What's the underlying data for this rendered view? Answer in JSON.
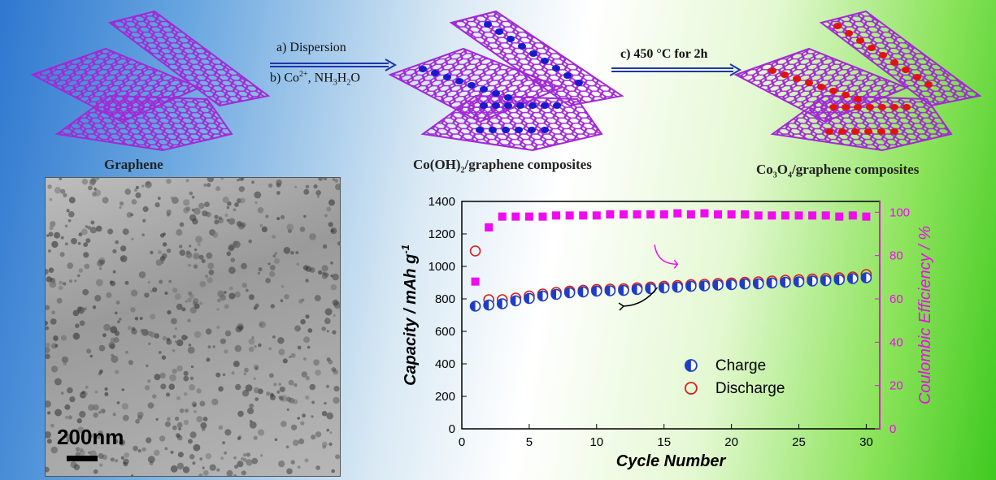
{
  "labels": {
    "graphene": "Graphene",
    "cooh_prefix": "Co(OH)",
    "cooh_sub": "2",
    "cooh_suffix": "/graphene composites",
    "co3o4_a": "Co",
    "co3o4_sub1": "3",
    "co3o4_b": "O",
    "co3o4_sub2": "4",
    "co3o4_suffix": "/graphene composites"
  },
  "steps": {
    "a": "a) Dispersion",
    "b_prefix": "b) Co",
    "b_sup": "2+",
    "b_suffix": ", NH",
    "b_sub1": "3",
    "b_mid": "H",
    "b_sub2": "2",
    "b_end": "O",
    "c": "c) 450 °C for 2h"
  },
  "tem": {
    "scale_label": "200nm"
  },
  "colors": {
    "sheet": "#a229d6",
    "co_oh_particle": "#1a1acc",
    "co3o4_particle": "#e01313",
    "charge": "#1e3ec7",
    "discharge": "#d81e1e",
    "efficiency": "#f00af0"
  },
  "chart_data": {
    "type": "scatter",
    "xlabel": "Cycle Number",
    "ylabel": "Capacity / mAh g",
    "ylabel_sup": "-1",
    "y2label": "Coulombic Efficiency / %",
    "xlim": [
      0,
      31
    ],
    "ylim": [
      0,
      1400
    ],
    "y2lim": [
      0,
      105
    ],
    "xticks": [
      0,
      5,
      10,
      15,
      20,
      25,
      30
    ],
    "yticks": [
      0,
      200,
      400,
      600,
      800,
      1000,
      1200,
      1400
    ],
    "y2ticks": [
      0,
      20,
      40,
      60,
      80,
      100
    ],
    "x": [
      1,
      2,
      3,
      4,
      5,
      6,
      7,
      8,
      9,
      10,
      11,
      12,
      13,
      14,
      15,
      16,
      17,
      18,
      19,
      20,
      21,
      22,
      23,
      24,
      25,
      26,
      27,
      28,
      29,
      30
    ],
    "series": [
      {
        "name": "Charge",
        "axis": "left",
        "values": [
          755,
          762,
          770,
          788,
          803,
          818,
          828,
          838,
          843,
          848,
          850,
          852,
          858,
          863,
          868,
          872,
          878,
          880,
          885,
          888,
          892,
          893,
          898,
          902,
          905,
          910,
          912,
          918,
          925,
          930
        ]
      },
      {
        "name": "Discharge",
        "axis": "left",
        "values": [
          1095,
          795,
          795,
          805,
          818,
          830,
          840,
          848,
          853,
          858,
          860,
          862,
          868,
          873,
          878,
          882,
          888,
          890,
          895,
          898,
          902,
          905,
          910,
          915,
          918,
          922,
          925,
          930,
          935,
          950
        ]
      },
      {
        "name": "",
        "axis": "right",
        "values": [
          68,
          93,
          98,
          98,
          98,
          98,
          98.5,
          98.5,
          98.5,
          98.5,
          99,
          99,
          99,
          99,
          99,
          99.5,
          99,
          99.5,
          99,
          99,
          99,
          98.5,
          98.5,
          98.5,
          98.5,
          98.5,
          98.5,
          98,
          98.5,
          98
        ]
      }
    ],
    "legend": [
      "Charge",
      "Discharge"
    ],
    "legend_position": "center-right"
  }
}
